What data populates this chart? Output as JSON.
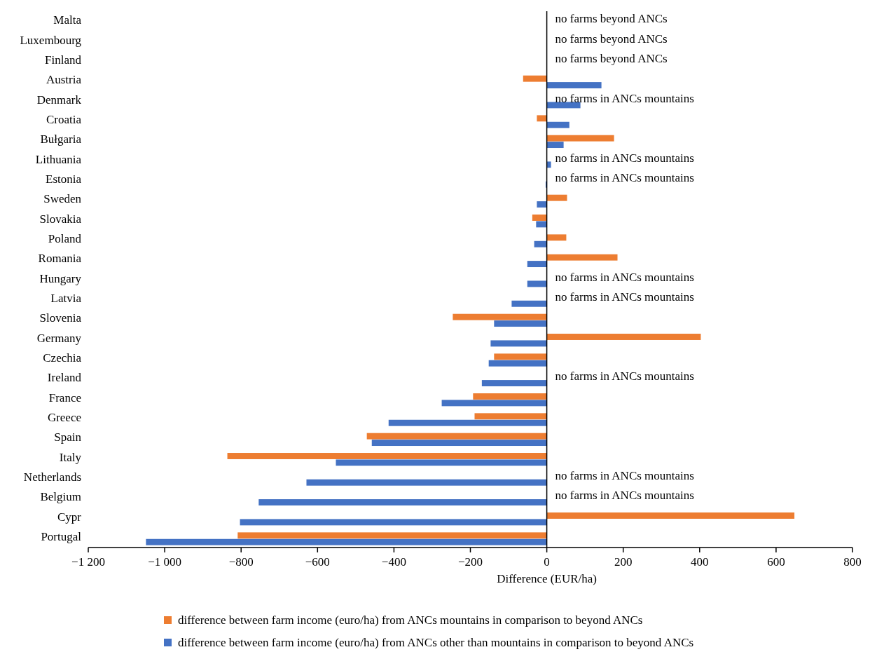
{
  "chart_data": {
    "type": "bar",
    "orientation": "horizontal",
    "xlabel": "Difference (EUR/ha)",
    "categories": [
      "Malta",
      "Luxembourg",
      "Finland",
      "Austria",
      "Denmark",
      "Croatia",
      "Bułgaria",
      "Lithuania",
      "Estonia",
      "Sweden",
      "Slovakia",
      "Poland",
      "Romania",
      "Hungary",
      "Latvia",
      "Slovenia",
      "Germany",
      "Czechia",
      "Ireland",
      "France",
      "Greece",
      "Spain",
      "Italy",
      "Netherlands",
      "Belgium",
      "Cypr",
      "Portugal"
    ],
    "series": [
      {
        "name": "difference between farm income (euro/ha) from ANCs mountains in comparison to beyond ANCs",
        "color": "#ed7d31",
        "values": [
          null,
          null,
          null,
          -62,
          null,
          -26,
          176,
          null,
          null,
          53,
          -38,
          51,
          185,
          null,
          null,
          -246,
          403,
          -138,
          null,
          -193,
          -189,
          -471,
          -836,
          null,
          null,
          648,
          -809
        ]
      },
      {
        "name": "difference between farm income (euro/ha) from ANCs other than mountains in comparison to beyond ANCs",
        "color": "#4472c4",
        "values": [
          null,
          null,
          null,
          143,
          88,
          59,
          44,
          11,
          -3,
          -26,
          -28,
          -33,
          -51,
          -51,
          -92,
          -138,
          -147,
          -152,
          -170,
          -275,
          -414,
          -458,
          -552,
          -629,
          -754,
          -803,
          -1049
        ]
      }
    ],
    "xlim": [
      -1200,
      800
    ],
    "xticks": [
      {
        "value": -1200,
        "label": "−1 200"
      },
      {
        "value": -1000,
        "label": "−1 000"
      },
      {
        "value": -800,
        "label": "−800"
      },
      {
        "value": -600,
        "label": "−600"
      },
      {
        "value": -400,
        "label": "−400"
      },
      {
        "value": -200,
        "label": "−200"
      },
      0,
      200,
      400,
      600,
      800
    ],
    "legend": "bottom",
    "annotations": [
      "no farms beyond ANCs",
      "no farms beyond ANCs",
      "no farms beyond ANCs",
      "no farms in ANCs mountains",
      "no farms in ANCs mountains",
      "no farms in ANCs mountains",
      "no farms in ANCs mountains",
      "no farms in ANCs mountains",
      "no farms in ANCs mountains",
      "no farms in ANCs mountains",
      "no farms in ANCs mountains"
    ]
  }
}
